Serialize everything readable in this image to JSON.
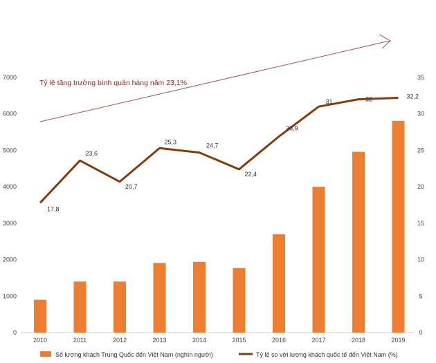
{
  "chart_data": {
    "type": "bar+line",
    "categories": [
      "2010",
      "2011",
      "2012",
      "2013",
      "2014",
      "2015",
      "2016",
      "2017",
      "2018",
      "2019"
    ],
    "series": [
      {
        "name": "Số lượng khách Trung Quốc đến Việt Nam (nghìn người)",
        "type": "bar",
        "axis": "left",
        "color": "#ED7D31",
        "values": [
          900,
          1400,
          1400,
          1910,
          1940,
          1770,
          2700,
          4000,
          4960,
          5810
        ]
      },
      {
        "name": "Tỷ lệ so với lượng khách quốc tế đến Việt Nam (%)",
        "type": "line",
        "axis": "right",
        "color": "#843C0C",
        "values": [
          17.8,
          23.6,
          20.7,
          25.3,
          24.7,
          22.4,
          26.9,
          31,
          32,
          32.2
        ],
        "labels": [
          "17,8",
          "23,6",
          "20,7",
          "25,3",
          "24,7",
          "22,4",
          "26,9",
          "31",
          "32",
          "32,2"
        ]
      }
    ],
    "y_left": {
      "ylim": [
        0,
        7000
      ],
      "ticks": [
        0,
        1000,
        2000,
        3000,
        4000,
        5000,
        6000,
        7000
      ]
    },
    "y_right": {
      "ylim": [
        0,
        35
      ],
      "ticks": [
        0,
        5,
        10,
        15,
        20,
        25,
        30,
        35
      ]
    },
    "annotation": {
      "text": "Tỷ lệ tăng trưởng bình quân hàng năm 23,1%",
      "color": "#8B2A1E"
    },
    "legend": {
      "position": "bottom"
    },
    "grid": false
  }
}
